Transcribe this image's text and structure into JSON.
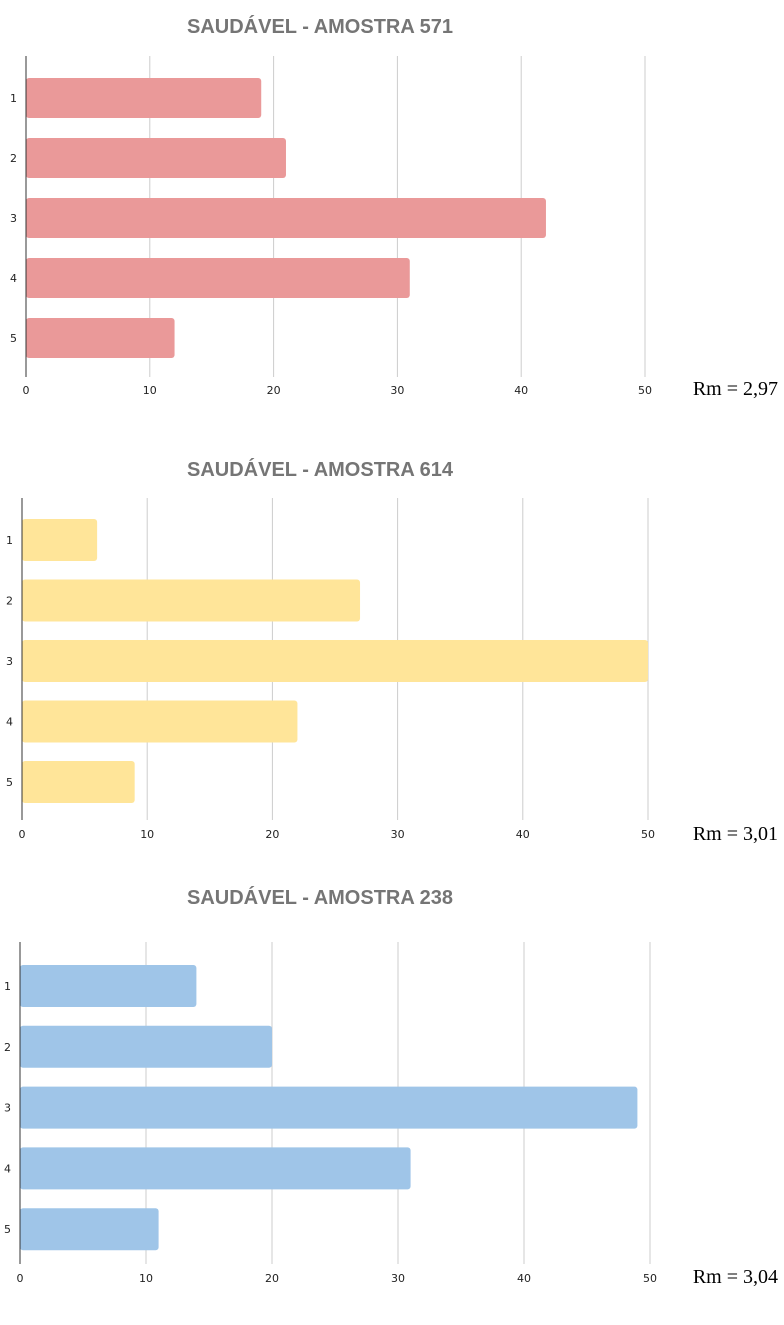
{
  "chart_data": [
    {
      "type": "bar",
      "orientation": "horizontal",
      "title": "SAUDÁVEL - AMOSTRA 571",
      "categories": [
        "1",
        "2",
        "3",
        "4",
        "5"
      ],
      "values": [
        19,
        21,
        42,
        31,
        12
      ],
      "xlim": [
        0,
        50
      ],
      "xticks": [
        0,
        10,
        20,
        30,
        40,
        50
      ],
      "grid": true,
      "bar_color": "#EA9999",
      "annotation": "Rm = 2,97"
    },
    {
      "type": "bar",
      "orientation": "horizontal",
      "title": "SAUDÁVEL - AMOSTRA 614",
      "categories": [
        "1",
        "2",
        "3",
        "4",
        "5"
      ],
      "values": [
        6,
        27,
        50,
        22,
        9
      ],
      "xlim": [
        0,
        50
      ],
      "xticks": [
        0,
        10,
        20,
        30,
        40,
        50
      ],
      "grid": true,
      "bar_color": "#FFE599",
      "annotation": "Rm = 3,01"
    },
    {
      "type": "bar",
      "orientation": "horizontal",
      "title": "SAUDÁVEL - AMOSTRA 238",
      "categories": [
        "1",
        "2",
        "3",
        "4",
        "5"
      ],
      "values": [
        14,
        20,
        49,
        31,
        11
      ],
      "xlim": [
        0,
        50
      ],
      "xticks": [
        0,
        10,
        20,
        30,
        40,
        50
      ],
      "grid": true,
      "bar_color": "#9FC5E8",
      "annotation": "Rm = 3,04"
    }
  ]
}
